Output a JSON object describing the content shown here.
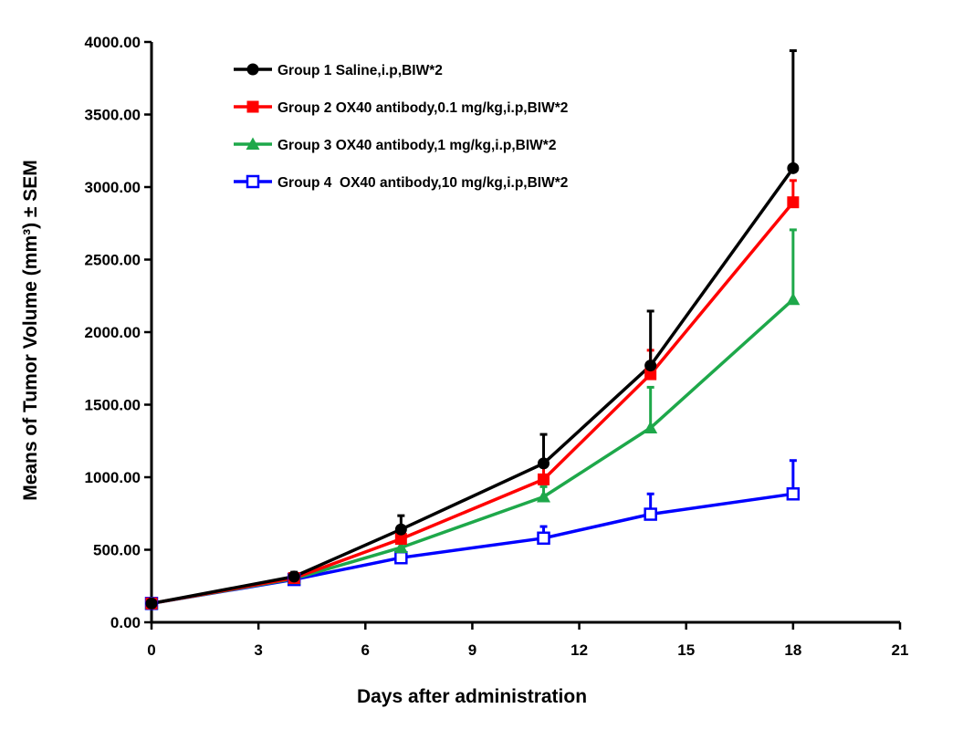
{
  "chart_data": {
    "type": "line",
    "title": "",
    "xlabel": "Days after administration",
    "ylabel": "Means of Tumor Volume (mm³) ± SEM",
    "xlim": [
      0,
      21
    ],
    "ylim": [
      0,
      4000
    ],
    "xticks": [
      "0",
      "3",
      "6",
      "9",
      "12",
      "15",
      "18",
      "21"
    ],
    "yticks": [
      "0.00",
      "500.00",
      "1000.00",
      "1500.00",
      "2000.00",
      "2500.00",
      "3000.00",
      "3500.00",
      "4000.00"
    ],
    "grid": false,
    "legend_position": "top-left",
    "x": [
      0,
      4,
      7,
      11,
      14,
      18
    ],
    "series": [
      {
        "name": "Group 1 Saline,i.p,BIW*2",
        "color": "#000000",
        "marker": "circle",
        "values": [
          130,
          315,
          640,
          1095,
          1770,
          3130
        ],
        "error": [
          15,
          30,
          95,
          200,
          375,
          810
        ]
      },
      {
        "name": "Group 2 OX40 antibody,0.1 mg/kg,i.p,BIW*2",
        "color": "#ff0000",
        "marker": "square",
        "values": [
          130,
          305,
          575,
          985,
          1710,
          2895
        ],
        "error": [
          15,
          25,
          70,
          110,
          165,
          150
        ]
      },
      {
        "name": "Group 3 OX40 antibody,1 mg/kg,i.p,BIW*2",
        "color": "#1ea84a",
        "marker": "triangle",
        "values": [
          130,
          300,
          515,
          865,
          1340,
          2225
        ],
        "error": [
          15,
          25,
          50,
          70,
          280,
          480
        ]
      },
      {
        "name": "Group 4  OX40 antibody,10 mg/kg,i.p,BIW*2",
        "color": "#0000ff",
        "marker": "open-square",
        "values": [
          130,
          295,
          445,
          580,
          745,
          885
        ],
        "error": [
          15,
          25,
          40,
          80,
          140,
          230
        ]
      }
    ]
  }
}
